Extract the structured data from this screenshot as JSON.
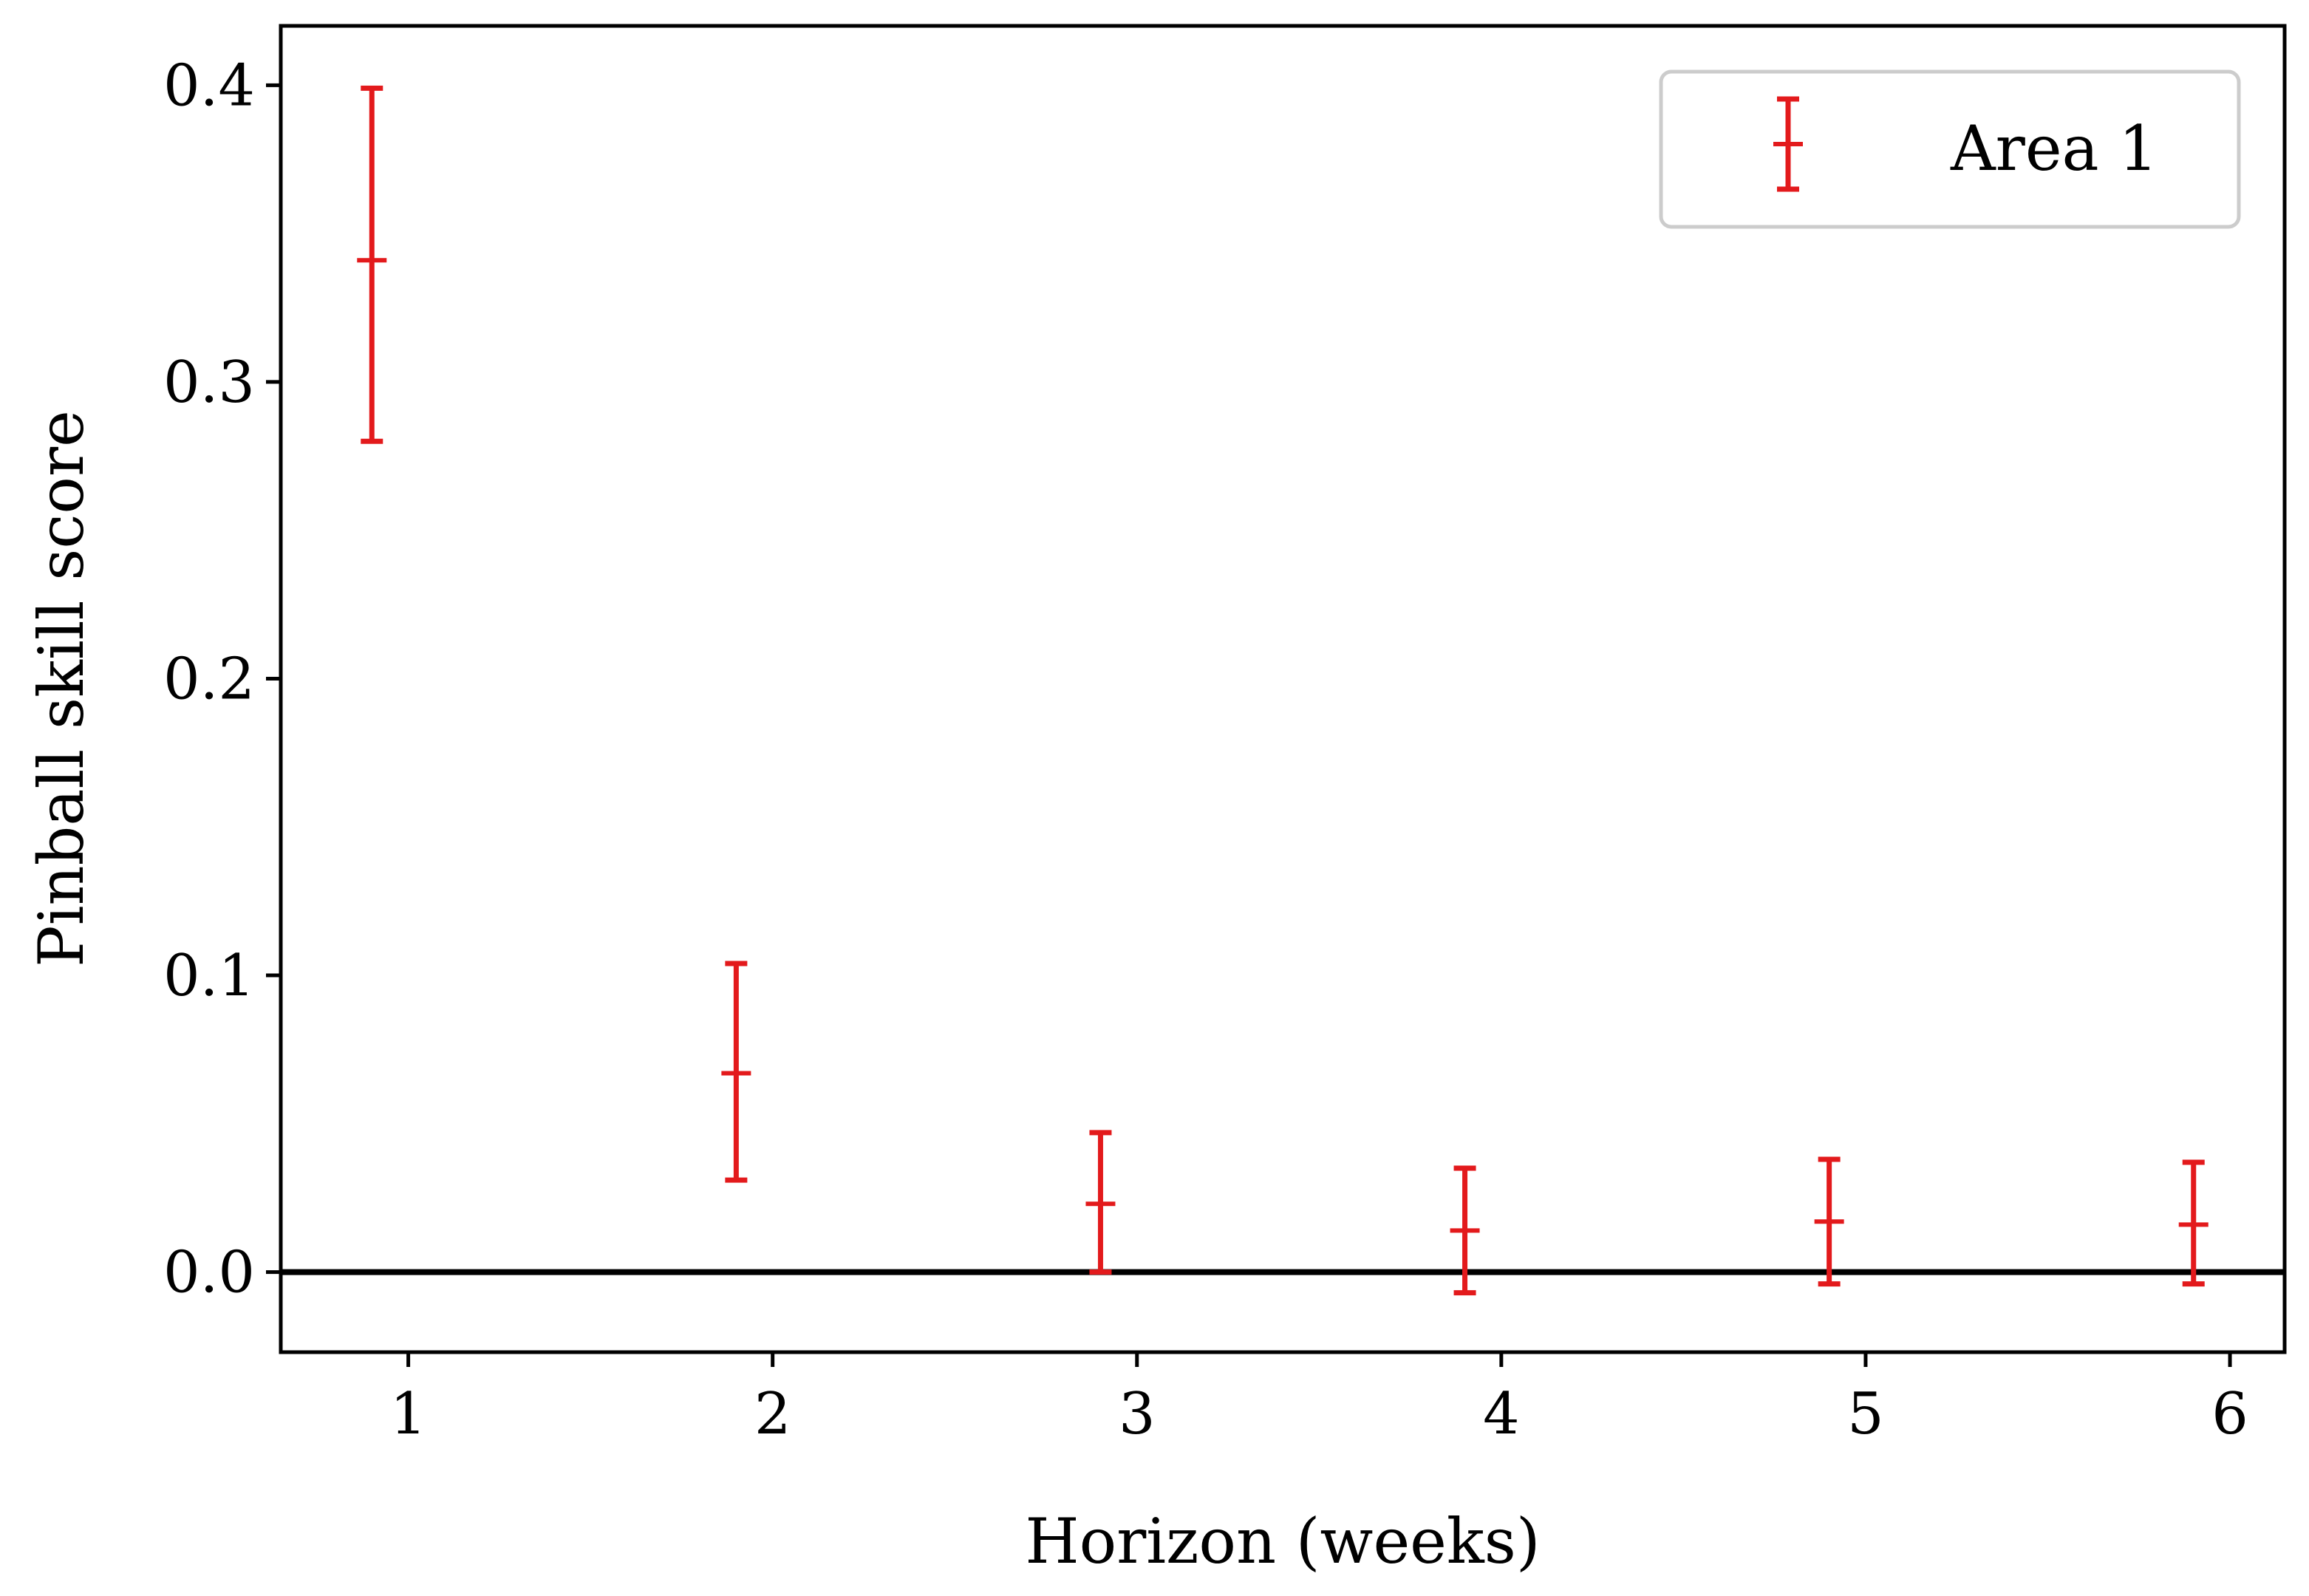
{
  "chart_data": {
    "type": "errorbar",
    "xlabel": "Horizon (weeks)",
    "ylabel": "Pinball skill score",
    "xlim": [
      0.65,
      6.15
    ],
    "ylim": [
      -0.027,
      0.42
    ],
    "x_ticks": [
      1,
      2,
      3,
      4,
      5,
      6
    ],
    "x_tick_labels": [
      "1",
      "2",
      "3",
      "4",
      "5",
      "6"
    ],
    "y_ticks": [
      0.0,
      0.1,
      0.2,
      0.3,
      0.4
    ],
    "y_tick_labels": [
      "0.0",
      "0.1",
      "0.2",
      "0.3",
      "0.4"
    ],
    "reference_line": {
      "y": 0.0,
      "color": "#000000"
    },
    "grid": false,
    "legend": {
      "position": "top-right"
    },
    "series": [
      {
        "name": "Area 1",
        "color": "#e31a1c",
        "points": [
          {
            "x": 0.9,
            "y": 0.341,
            "lower": 0.28,
            "upper": 0.399
          },
          {
            "x": 1.9,
            "y": 0.067,
            "lower": 0.031,
            "upper": 0.104
          },
          {
            "x": 2.9,
            "y": 0.023,
            "lower": 0.0,
            "upper": 0.047
          },
          {
            "x": 3.9,
            "y": 0.014,
            "lower": -0.007,
            "upper": 0.035
          },
          {
            "x": 4.9,
            "y": 0.017,
            "lower": -0.004,
            "upper": 0.038
          },
          {
            "x": 5.9,
            "y": 0.016,
            "lower": -0.004,
            "upper": 0.037
          }
        ]
      }
    ]
  }
}
